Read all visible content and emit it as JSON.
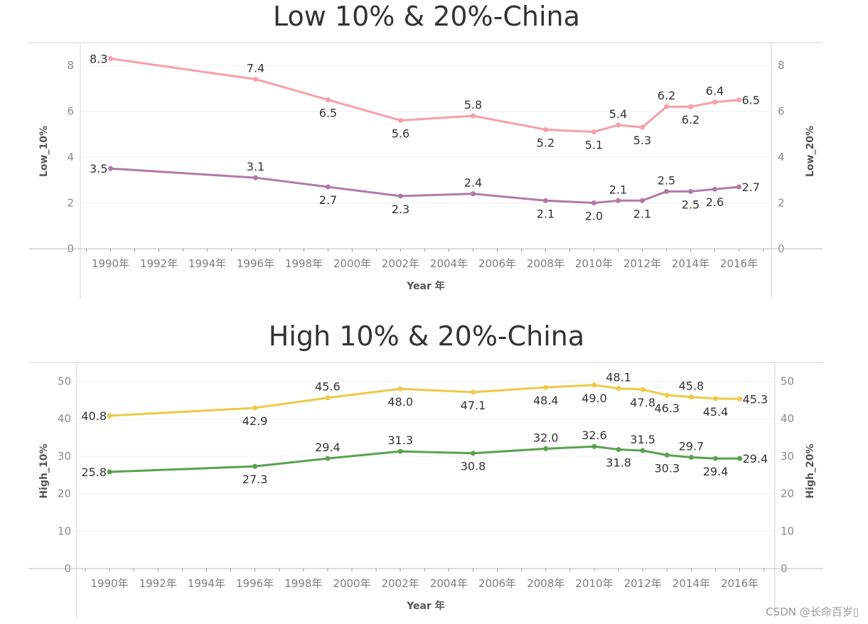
{
  "watermark": "CSDN @长命百岁▯",
  "colors": {
    "low_10": "#b07aa8",
    "low_20": "#f7a0a8",
    "high_10": "#59a14f",
    "high_20": "#edc948",
    "axis": "#cccccc",
    "grid": "#f0f0f0"
  },
  "chart_data": [
    {
      "type": "line",
      "title": "Low 10% & 20%-China",
      "xlabel": "Year 年",
      "ylabel_left": "Low_10%",
      "ylabel_right": "Low_20%",
      "ylim": [
        0,
        8.5
      ],
      "yticks": [
        0,
        2,
        4,
        6,
        8
      ],
      "xlim": [
        1989,
        2017.3
      ],
      "xticks": [
        1990,
        1992,
        1994,
        1996,
        1998,
        2000,
        2002,
        2004,
        2006,
        2008,
        2010,
        2012,
        2014,
        2016
      ],
      "xtick_labels": [
        "1990年",
        "1992年",
        "1994年",
        "1996年",
        "1998年",
        "2000年",
        "2002年",
        "2004年",
        "2006年",
        "2008年",
        "2010年",
        "2012年",
        "2014年",
        "2016年"
      ],
      "grid": true,
      "series": [
        {
          "name": "Low_20%",
          "color": "#f7a0a8",
          "x": [
            1990,
            1996,
            1999,
            2002,
            2005,
            2008,
            2010,
            2011,
            2012,
            2013,
            2014,
            2015,
            2016
          ],
          "values": [
            8.3,
            7.4,
            6.5,
            5.6,
            5.8,
            5.2,
            5.1,
            5.4,
            5.3,
            6.2,
            6.2,
            6.4,
            6.5
          ],
          "labels": [
            "8.3",
            "7.4",
            "6.5",
            "5.6",
            "5.8",
            "5.2",
            "5.1",
            "5.4",
            "5.3",
            "6.2",
            "6.2",
            "6.4",
            "6.5"
          ],
          "label_pos": [
            "left",
            "above",
            "below",
            "below",
            "above",
            "below",
            "below",
            "above",
            "below",
            "above",
            "below",
            "above",
            "right"
          ]
        },
        {
          "name": "Low_10%",
          "color": "#b07aa8",
          "x": [
            1990,
            1996,
            1999,
            2002,
            2005,
            2008,
            2010,
            2011,
            2012,
            2013,
            2014,
            2015,
            2016
          ],
          "values": [
            3.5,
            3.1,
            2.7,
            2.3,
            2.4,
            2.1,
            2.0,
            2.1,
            2.1,
            2.5,
            2.5,
            2.6,
            2.7
          ],
          "labels": [
            "3.5",
            "3.1",
            "2.7",
            "2.3",
            "2.4",
            "2.1",
            "2.0",
            "2.1",
            "2.1",
            "2.5",
            "2.5",
            "2.6",
            "2.7"
          ],
          "label_pos": [
            "left",
            "above",
            "below",
            "below",
            "above",
            "below",
            "below",
            "above",
            "below",
            "above",
            "below",
            "below",
            "right"
          ]
        }
      ]
    },
    {
      "type": "line",
      "title": "High 10% & 20%-China",
      "xlabel": "Year 年",
      "ylabel_left": "High_10%",
      "ylabel_right": "High_20%",
      "ylim": [
        0,
        52
      ],
      "yticks": [
        0,
        10,
        20,
        30,
        40,
        50
      ],
      "xlim": [
        1989,
        2017.3
      ],
      "xticks": [
        1990,
        1992,
        1994,
        1996,
        1998,
        2000,
        2002,
        2004,
        2006,
        2008,
        2010,
        2012,
        2014,
        2016
      ],
      "xtick_labels": [
        "1990年",
        "1992年",
        "1994年",
        "1996年",
        "1998年",
        "2000年",
        "2002年",
        "2004年",
        "2006年",
        "2008年",
        "2010年",
        "2012年",
        "2014年",
        "2016年"
      ],
      "grid": true,
      "series": [
        {
          "name": "High_20%",
          "color": "#edc948",
          "x": [
            1990,
            1996,
            1999,
            2002,
            2005,
            2008,
            2010,
            2011,
            2012,
            2013,
            2014,
            2015,
            2016
          ],
          "values": [
            40.8,
            42.9,
            45.6,
            48.0,
            47.1,
            48.4,
            49.0,
            48.1,
            47.8,
            46.3,
            45.8,
            45.4,
            45.3
          ],
          "labels": [
            "40.8",
            "42.9",
            "45.6",
            "48.0",
            "47.1",
            "48.4",
            "49.0",
            "48.1",
            "47.8",
            "46.3",
            "45.8",
            "45.4",
            "45.3"
          ],
          "label_pos": [
            "left",
            "below",
            "above",
            "below",
            "below",
            "below",
            "below",
            "above",
            "below",
            "below",
            "above",
            "below",
            "right"
          ]
        },
        {
          "name": "High_10%",
          "color": "#59a14f",
          "x": [
            1990,
            1996,
            1999,
            2002,
            2005,
            2008,
            2010,
            2011,
            2012,
            2013,
            2014,
            2015,
            2016
          ],
          "values": [
            25.8,
            27.3,
            29.4,
            31.3,
            30.8,
            32.0,
            32.6,
            31.8,
            31.5,
            30.3,
            29.7,
            29.4,
            29.4
          ],
          "labels": [
            "25.8",
            "27.3",
            "29.4",
            "31.3",
            "30.8",
            "32.0",
            "32.6",
            "31.8",
            "31.5",
            "30.3",
            "29.7",
            "29.4",
            "29.4"
          ],
          "label_pos": [
            "left",
            "below",
            "above",
            "above",
            "below",
            "above",
            "above",
            "below",
            "above",
            "below",
            "above",
            "below",
            "right"
          ]
        }
      ]
    }
  ]
}
